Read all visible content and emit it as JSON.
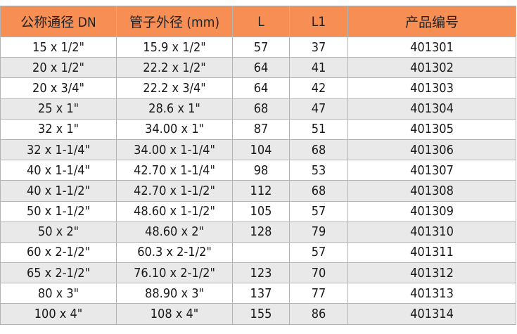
{
  "colors": {
    "header_bg": "#f78f55",
    "alt_row_bg": "#e9e9e9"
  },
  "headers": [
    "公称通径 DN",
    "管子外径 (mm)",
    "L",
    "L1",
    "产品编号"
  ],
  "rows": [
    [
      "15 x 1/2\"",
      "15.9 x 1/2\"",
      "57",
      "37",
      "401301"
    ],
    [
      "20 x 1/2\"",
      "22.2 x 1/2\"",
      "64",
      "41",
      "401302"
    ],
    [
      "20 x 3/4\"",
      "22.2 x 3/4\"",
      "64",
      "42",
      "401303"
    ],
    [
      "25 x 1\"",
      "28.6 x 1\"",
      "68",
      "47",
      "401304"
    ],
    [
      "32 x 1\"",
      "34.00 x 1\"",
      "87",
      "51",
      "401305"
    ],
    [
      "32 x 1-1/4\"",
      "34.00 x 1-1/4\"",
      "104",
      "68",
      "401306"
    ],
    [
      "40 x 1-1/4\"",
      "42.70 x 1-1/4\"",
      "98",
      "53",
      "401307"
    ],
    [
      "40 x 1-1/2\"",
      "42.70 x 1-1/2\"",
      "112",
      "68",
      "401308"
    ],
    [
      "50 x 1-1/2\"",
      "48.60 x 1-1/2\"",
      "105",
      "57",
      "401309"
    ],
    [
      "50 x 2\"",
      "48.60 x 2\"",
      "128",
      "79",
      "401310"
    ],
    [
      "60 x 2-1/2\"",
      "60.3 x 2-1/2\"",
      "",
      "57",
      "401311"
    ],
    [
      "65 x 2-1/2\"",
      "76.10 x 2-1/2\"",
      "123",
      "70",
      "401312"
    ],
    [
      "80 x 3\"",
      "88.90 x 3\"",
      "137",
      "77",
      "401313"
    ],
    [
      "100 x 4\"",
      "108 x 4\"",
      "155",
      "86",
      "401314"
    ]
  ]
}
